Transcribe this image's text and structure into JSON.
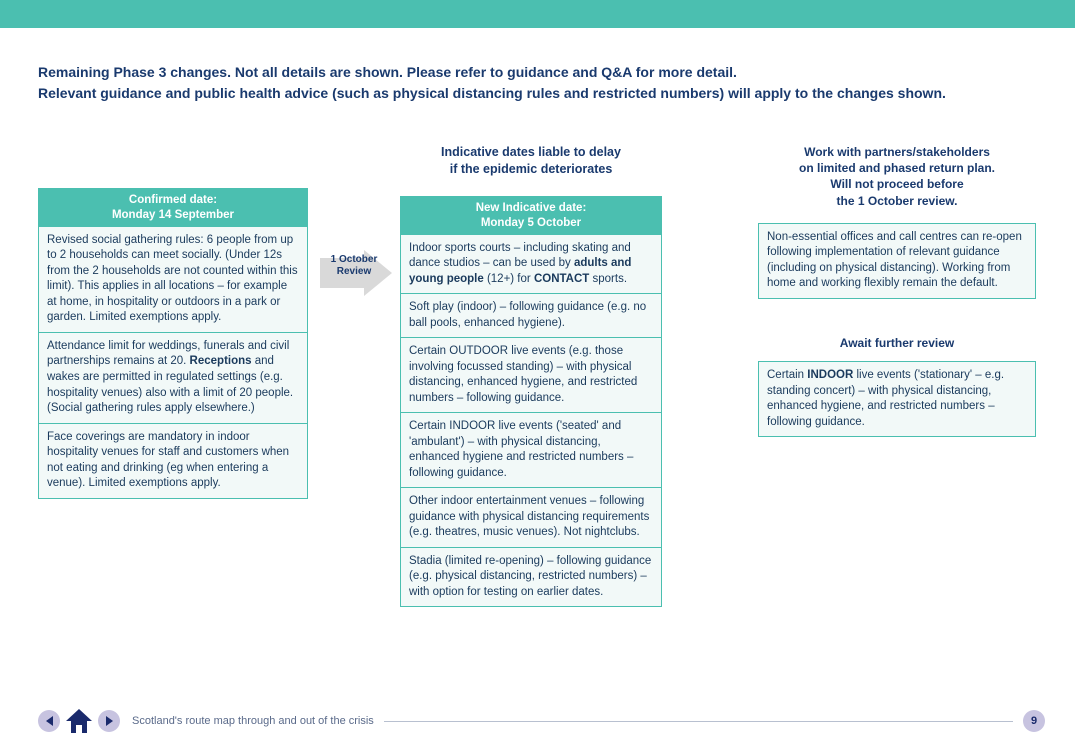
{
  "colors": {
    "teal": "#4bbfb0",
    "panel_bg": "#f2f9f8",
    "heading_text": "#1a3a6e",
    "body_text": "#1a3a5c",
    "nav_circle": "#c7c3e0",
    "nav_fg": "#1a2a6c",
    "footer_line": "#b8c0d0",
    "arrow_fill": "#d9d9d9"
  },
  "intro": {
    "line1": "Remaining Phase 3 changes. Not all details are shown. Please refer to guidance and Q&A for more detail.",
    "line2": "Relevant guidance and public health advice (such as physical distancing rules and restricted numbers) will apply to the changes shown."
  },
  "arrow_label": "1 October\nReview",
  "left": {
    "head_line1": "Confirmed date:",
    "head_line2": "Monday 14 September",
    "items": [
      [
        {
          "t": "Revised social gathering rules: 6 people from up to 2 households can meet socially. (Under 12s from the 2 households are not counted within this limit). This applies in all locations – for example at home, in hospitality or outdoors in a park or garden. Limited exemptions apply."
        }
      ],
      [
        {
          "t": "Attendance limit for weddings, funerals and civil partnerships remains at 20. "
        },
        {
          "t": "Receptions",
          "b": true
        },
        {
          "t": " and wakes are permitted in regulated settings (e.g. hospitality venues) also with a limit of 20 people. (Social gathering rules apply elsewhere.)"
        }
      ],
      [
        {
          "t": "Face coverings are mandatory in indoor hospitality venues for staff and customers when not eating and drinking (eg when entering a venue). Limited exemptions apply."
        }
      ]
    ]
  },
  "mid": {
    "pre_line1": "Indicative dates liable to delay",
    "pre_line2": "if the epidemic deteriorates",
    "head_line1": "New Indicative date:",
    "head_line2": "Monday 5 October",
    "items": [
      [
        {
          "t": "Indoor sports courts – including skating and dance studios – can be used by "
        },
        {
          "t": "adults and young people",
          "b": true
        },
        {
          "t": " (12+) for "
        },
        {
          "t": "CONTACT",
          "b": true
        },
        {
          "t": " sports."
        }
      ],
      [
        {
          "t": "Soft play (indoor) – following guidance (e.g. no ball pools, enhanced hygiene)."
        }
      ],
      [
        {
          "t": "Certain OUTDOOR live events (e.g. those involving focussed standing) – with physical distancing, enhanced hygiene, and restricted numbers – following guidance."
        }
      ],
      [
        {
          "t": "Certain INDOOR live events ('seated' and 'ambulant') – with physical distancing, enhanced hygiene and restricted numbers – following guidance."
        }
      ],
      [
        {
          "t": "Other indoor entertainment venues – following guidance with physical distancing requirements (e.g. theatres, music venues). Not nightclubs."
        }
      ],
      [
        {
          "t": "Stadia (limited re-opening) – following guidance (e.g. physical distancing, restricted numbers) – with option for testing on earlier dates."
        }
      ]
    ]
  },
  "right": {
    "top_header": "Work with partners/stakeholders\non limited and phased return plan.\nWill not proceed before\nthe 1 October review.",
    "top_box": [
      {
        "t": "Non-essential offices and call centres can re-open following implementation of relevant guidance (including on physical distancing). Working from home and working flexibly remain the default."
      }
    ],
    "mid_header": "Await further review",
    "mid_box": [
      {
        "t": "Certain "
      },
      {
        "t": "INDOOR",
        "b": true
      },
      {
        "t": " live events ('stationary' – e.g. standing concert) – with physical distancing, enhanced hygiene, and restricted numbers – following guidance."
      }
    ]
  },
  "footer": {
    "text": "Scotland's route map through and out of the crisis",
    "page": "9"
  }
}
